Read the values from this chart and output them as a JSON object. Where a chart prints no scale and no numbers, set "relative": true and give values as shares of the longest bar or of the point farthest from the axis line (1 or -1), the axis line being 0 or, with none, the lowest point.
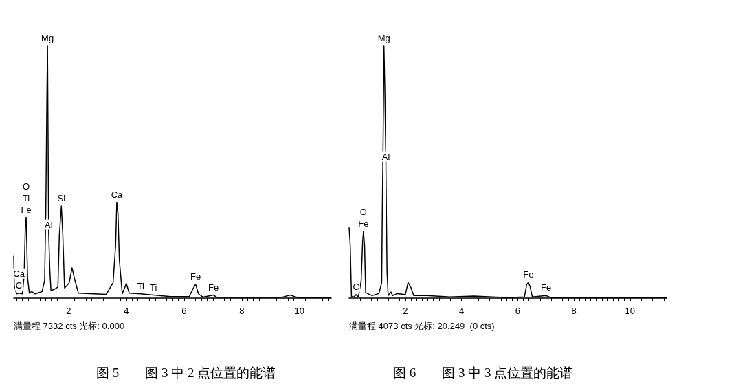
{
  "chart_data": [
    {
      "type": "line",
      "title": "图 5　　图 3 中 2 点位置的能谱",
      "relative": true,
      "marker": "none",
      "line_style": "solid",
      "grid": false,
      "xlim": [
        0.1,
        11.1
      ],
      "xticks": [
        {
          "value": 0.2,
          "label": null
        },
        {
          "value": 0.4,
          "label": null
        },
        {
          "value": 0.6,
          "label": null
        },
        {
          "value": 0.8,
          "label": null
        },
        {
          "value": 1,
          "label": null
        },
        {
          "value": 1.2,
          "label": null
        },
        {
          "value": 1.4,
          "label": null
        },
        {
          "value": 1.6,
          "label": null
        },
        {
          "value": 1.8,
          "label": null
        },
        2,
        {
          "value": 2.2,
          "label": null
        },
        {
          "value": 2.4,
          "label": null
        },
        {
          "value": 2.6,
          "label": null
        },
        {
          "value": 2.8,
          "label": null
        },
        {
          "value": 3,
          "label": null
        },
        {
          "value": 3.2,
          "label": null
        },
        {
          "value": 3.4,
          "label": null
        },
        {
          "value": 3.6,
          "label": null
        },
        {
          "value": 3.8,
          "label": null
        },
        4,
        {
          "value": 4.2,
          "label": null
        },
        {
          "value": 4.4,
          "label": null
        },
        {
          "value": 4.6,
          "label": null
        },
        {
          "value": 4.8,
          "label": null
        },
        {
          "value": 5,
          "label": null
        },
        {
          "value": 5.2,
          "label": null
        },
        {
          "value": 5.4,
          "label": null
        },
        {
          "value": 5.6,
          "label": null
        },
        {
          "value": 5.8,
          "label": null
        },
        6,
        {
          "value": 6.2,
          "label": null
        },
        {
          "value": 6.4,
          "label": null
        },
        {
          "value": 6.6,
          "label": null
        },
        {
          "value": 6.8,
          "label": null
        },
        {
          "value": 7,
          "label": null
        },
        {
          "value": 7.2,
          "label": null
        },
        {
          "value": 7.4,
          "label": null
        },
        {
          "value": 7.6,
          "label": null
        },
        {
          "value": 7.8,
          "label": null
        },
        8,
        {
          "value": 8.2,
          "label": null
        },
        {
          "value": 8.4,
          "label": null
        },
        {
          "value": 8.6,
          "label": null
        },
        {
          "value": 8.8,
          "label": null
        },
        {
          "value": 9,
          "label": null
        },
        {
          "value": 9.2,
          "label": null
        },
        {
          "value": 9.4,
          "label": null
        },
        {
          "value": 9.6,
          "label": null
        },
        {
          "value": 9.8,
          "label": null
        },
        10,
        {
          "value": 10.2,
          "label": null
        },
        {
          "value": 10.4,
          "label": null
        },
        {
          "value": 10.6,
          "label": null
        },
        {
          "value": 10.8,
          "label": null
        },
        {
          "value": 11,
          "label": null
        }
      ],
      "series": [
        {
          "color": "#000000",
          "x": [
            0.1,
            0.12,
            0.2,
            0.28,
            0.4,
            0.46,
            0.5,
            0.53,
            0.58,
            0.64,
            0.72,
            0.84,
            1.08,
            1.17,
            1.21,
            1.25,
            1.27,
            1.31,
            1.35,
            1.39,
            1.51,
            1.63,
            1.68,
            1.75,
            1.8,
            1.86,
            2.02,
            2.12,
            2.22,
            2.34,
            2.74,
            3.3,
            3.54,
            3.63,
            3.67,
            3.71,
            3.76,
            3.86,
            4.0,
            4.1,
            4.5,
            4.94,
            5.54,
            6.18,
            6.3,
            6.4,
            6.5,
            6.66,
            7.02,
            7.14,
            9.38,
            9.68,
            9.94,
            11.1
          ],
          "values": [
            0.17,
            0.05,
            0.017,
            0.02,
            0.017,
            0.09,
            0.28,
            0.32,
            0.08,
            0.02,
            0.026,
            0.017,
            0.026,
            0.07,
            0.34,
            0.82,
            1.0,
            0.26,
            0.11,
            0.03,
            0.035,
            0.044,
            0.25,
            0.365,
            0.25,
            0.04,
            0.06,
            0.12,
            0.07,
            0.02,
            0.018,
            0.015,
            0.06,
            0.21,
            0.38,
            0.34,
            0.15,
            0.017,
            0.058,
            0.02,
            0.017,
            0.012,
            0.006,
            0.006,
            0.035,
            0.055,
            0.017,
            0.004,
            0.012,
            0.003,
            0.003,
            0.012,
            0.002,
            0.002
          ]
        }
      ],
      "annotations": [
        {
          "text": "Mg",
          "x": 1.27,
          "y": 1.0
        },
        {
          "text": "O",
          "x": 0.53,
          "y": 0.32
        },
        {
          "text": "Ti",
          "x": 0.53,
          "y": 0.32
        },
        {
          "text": "Fe",
          "x": 0.53,
          "y": 0.32
        },
        {
          "text": "Si",
          "x": 1.75,
          "y": 0.365
        },
        {
          "text": "Al",
          "x": 1.31,
          "y": 0.26
        },
        {
          "text": "Ca",
          "x": 3.67,
          "y": 0.38
        },
        {
          "text": "Ca",
          "x": 0.28,
          "y": 0.02
        },
        {
          "text": "C",
          "x": 0.28,
          "y": 0.02
        },
        {
          "text": "Ti",
          "x": 4.5,
          "y": 0.017
        },
        {
          "text": "Ti",
          "x": 4.94,
          "y": 0.012
        },
        {
          "text": "Fe",
          "x": 6.4,
          "y": 0.055
        },
        {
          "text": "Fe",
          "x": 7.02,
          "y": 0.012
        },
        "满量程 7332 cts 光标: 0.000"
      ]
    },
    {
      "type": "line",
      "title": "图 6　　图 3 中 3 点位置的能谱",
      "relative": true,
      "marker": "none",
      "line_style": "solid",
      "grid": false,
      "xlim": [
        0,
        11.3
      ],
      "xticks": [
        {
          "value": 0.2,
          "label": null
        },
        {
          "value": 0.4,
          "label": null
        },
        {
          "value": 0.6,
          "label": null
        },
        {
          "value": 0.8,
          "label": null
        },
        {
          "value": 1,
          "label": null
        },
        {
          "value": 1.2,
          "label": null
        },
        {
          "value": 1.4,
          "label": null
        },
        {
          "value": 1.6,
          "label": null
        },
        {
          "value": 1.8,
          "label": null
        },
        2,
        {
          "value": 2.2,
          "label": null
        },
        {
          "value": 2.4,
          "label": null
        },
        {
          "value": 2.6,
          "label": null
        },
        {
          "value": 2.8,
          "label": null
        },
        {
          "value": 3,
          "label": null
        },
        {
          "value": 3.2,
          "label": null
        },
        {
          "value": 3.4,
          "label": null
        },
        {
          "value": 3.6,
          "label": null
        },
        {
          "value": 3.8,
          "label": null
        },
        4,
        {
          "value": 4.2,
          "label": null
        },
        {
          "value": 4.4,
          "label": null
        },
        {
          "value": 4.6,
          "label": null
        },
        {
          "value": 4.8,
          "label": null
        },
        {
          "value": 5,
          "label": null
        },
        {
          "value": 5.2,
          "label": null
        },
        {
          "value": 5.4,
          "label": null
        },
        {
          "value": 5.6,
          "label": null
        },
        {
          "value": 5.8,
          "label": null
        },
        6,
        {
          "value": 6.2,
          "label": null
        },
        {
          "value": 6.4,
          "label": null
        },
        {
          "value": 6.6,
          "label": null
        },
        {
          "value": 6.8,
          "label": null
        },
        {
          "value": 7,
          "label": null
        },
        {
          "value": 7.2,
          "label": null
        },
        {
          "value": 7.4,
          "label": null
        },
        {
          "value": 7.6,
          "label": null
        },
        {
          "value": 7.8,
          "label": null
        },
        8,
        {
          "value": 8.2,
          "label": null
        },
        {
          "value": 8.4,
          "label": null
        },
        {
          "value": 8.6,
          "label": null
        },
        {
          "value": 8.8,
          "label": null
        },
        {
          "value": 9,
          "label": null
        },
        {
          "value": 9.2,
          "label": null
        },
        {
          "value": 9.4,
          "label": null
        },
        {
          "value": 9.6,
          "label": null
        },
        {
          "value": 9.8,
          "label": null
        },
        10,
        {
          "value": 10.2,
          "label": null
        },
        {
          "value": 10.4,
          "label": null
        },
        {
          "value": 10.6,
          "label": null
        },
        {
          "value": 10.8,
          "label": null
        },
        {
          "value": 11,
          "label": null
        },
        {
          "value": 11.2,
          "label": null
        }
      ],
      "series": [
        {
          "color": "#000000",
          "x": [
            0.0,
            0.04,
            0.085,
            0.17,
            0.25,
            0.33,
            0.43,
            0.48,
            0.51,
            0.55,
            0.59,
            0.7,
            0.82,
            1.06,
            1.16,
            1.18,
            1.21,
            1.24,
            1.27,
            1.31,
            1.35,
            1.39,
            1.49,
            1.55,
            1.71,
            2.0,
            2.1,
            2.2,
            2.3,
            2.77,
            3.59,
            4.44,
            5.63,
            6.24,
            6.32,
            6.38,
            6.44,
            6.52,
            7.01,
            7.18,
            10.0,
            11.3
          ],
          "values": [
            0.28,
            0.21,
            0.006,
            0.005,
            0.014,
            0.005,
            0.07,
            0.22,
            0.265,
            0.21,
            0.022,
            0.016,
            0.01,
            0.018,
            0.062,
            0.33,
            0.62,
            1.0,
            0.84,
            0.53,
            0.106,
            0.01,
            0.024,
            0.01,
            0.018,
            0.014,
            0.062,
            0.042,
            0.01,
            0.01,
            0.005,
            0.008,
            0.002,
            0.005,
            0.054,
            0.062,
            0.046,
            0.005,
            0.01,
            0.002,
            0.002,
            0.002
          ]
        }
      ],
      "annotations": [
        {
          "text": "Mg",
          "x": 1.24,
          "y": 1.0
        },
        {
          "text": "Al",
          "x": 1.31,
          "y": 0.53
        },
        {
          "text": "O",
          "x": 0.51,
          "y": 0.265
        },
        {
          "text": "Fe",
          "x": 0.51,
          "y": 0.265
        },
        {
          "text": "C",
          "x": 0.25,
          "y": 0.014
        },
        {
          "text": "Fe",
          "x": 6.38,
          "y": 0.062
        },
        {
          "text": "Fe",
          "x": 7.01,
          "y": 0.01
        },
        "满量程 4073 cts 光标: 20.249  (0 cts)"
      ]
    }
  ]
}
